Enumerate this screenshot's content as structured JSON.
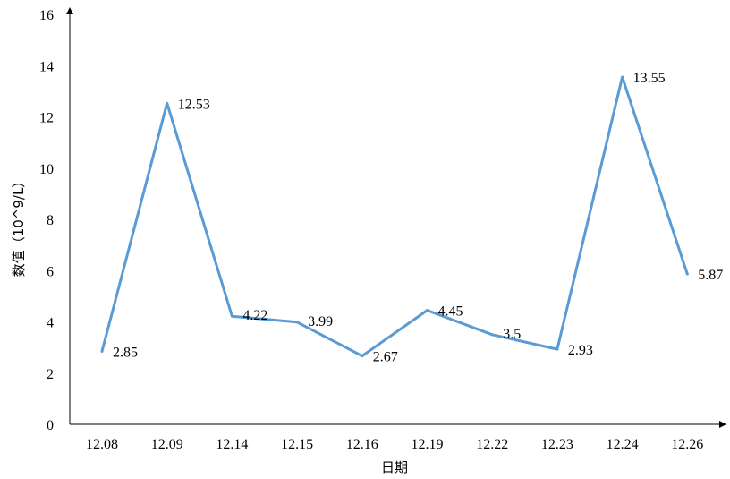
{
  "chart_data": {
    "type": "line",
    "title": "",
    "xlabel": "日期",
    "ylabel": "数值（10^9/L）",
    "categories": [
      "12.08",
      "12.09",
      "12.14",
      "12.15",
      "12.16",
      "12.19",
      "12.22",
      "12.23",
      "12.24",
      "12.26"
    ],
    "series": [
      {
        "values": [
          2.85,
          12.53,
          4.22,
          3.99,
          2.67,
          4.45,
          3.5,
          2.93,
          13.55,
          5.87
        ],
        "color": "#5B9BD5"
      }
    ],
    "data_labels": [
      "2.85",
      "12.53",
      "4.22",
      "3.99",
      "2.67",
      "4.45",
      "3.5",
      "2.93",
      "13.55",
      "5.87"
    ],
    "ylim": [
      0,
      16
    ],
    "yticks": [
      "0",
      "2",
      "4",
      "6",
      "8",
      "10",
      "12",
      "14",
      "16"
    ],
    "grid": false,
    "legend": "none"
  }
}
